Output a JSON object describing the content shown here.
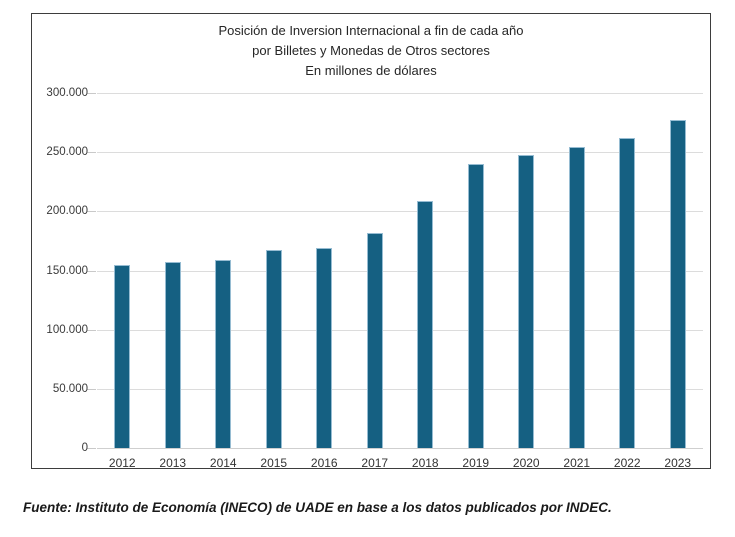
{
  "chart_data": {
    "type": "bar",
    "title_lines": [
      "Posición de Inversion Internacional a fin de cada año",
      "por Billetes y Monedas de Otros sectores",
      "En millones de dólares"
    ],
    "categories": [
      "2012",
      "2013",
      "2014",
      "2015",
      "2016",
      "2017",
      "2018",
      "2019",
      "2020",
      "2021",
      "2022",
      "2023"
    ],
    "values": [
      155000,
      157500,
      159000,
      167000,
      169000,
      181500,
      208500,
      240000,
      248000,
      254500,
      262000,
      277500
    ],
    "xlabel": "",
    "ylabel": "",
    "ylim": [
      0,
      300000
    ],
    "ytick_step": 50000,
    "ytick_labels": [
      "300.000",
      "250.000",
      "200.000",
      "150.000",
      "100.000",
      "50.000",
      "0"
    ],
    "grid": "horizontal",
    "legend": "none",
    "bar_color": "#156082"
  },
  "colors": {
    "bar": "#156082",
    "gridline": "#dcdcdc",
    "frame_border": "#3d3d3d",
    "text": "#262626"
  },
  "footer": {
    "source_text": "Fuente: Instituto de Economía (INECO) de UADE en base a los datos publicados por INDEC."
  }
}
